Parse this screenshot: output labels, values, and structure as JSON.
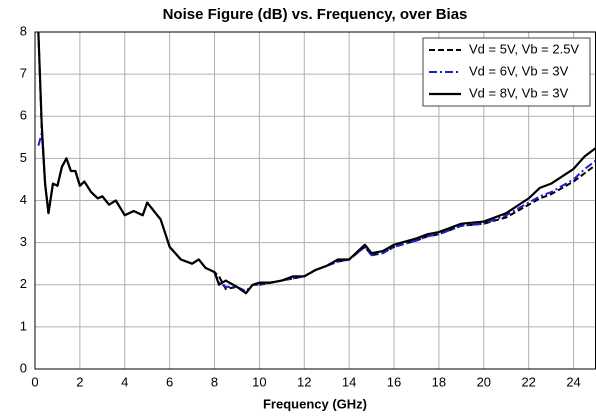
{
  "chart_data": {
    "type": "line",
    "title": "Noise Figure (dB) vs. Frequency, over Bias",
    "x_label": "Frequency (GHz)",
    "xlim": [
      0,
      25
    ],
    "ylim": [
      0,
      8
    ],
    "xticks": [
      0,
      2,
      4,
      6,
      8,
      10,
      12,
      14,
      16,
      18,
      20,
      22,
      24
    ],
    "yticks": [
      0,
      1,
      2,
      3,
      4,
      5,
      6,
      7,
      8
    ],
    "grid": true,
    "legend": "upper right",
    "x": [
      0.15,
      0.3,
      0.45,
      0.6,
      0.8,
      1.0,
      1.2,
      1.4,
      1.6,
      1.8,
      2.0,
      2.2,
      2.5,
      2.8,
      3.0,
      3.3,
      3.6,
      4.0,
      4.4,
      4.8,
      5.0,
      5.3,
      5.6,
      6.0,
      6.5,
      7.0,
      7.3,
      7.6,
      8.0,
      8.2,
      8.5,
      9.0,
      9.4,
      9.7,
      10.0,
      10.5,
      11.0,
      11.5,
      12.0,
      12.5,
      13.0,
      13.5,
      14.0,
      14.7,
      15.0,
      15.5,
      16.0,
      17.0,
      17.5,
      18.0,
      19.0,
      20.0,
      21.0,
      22.0,
      22.5,
      23.0,
      24.0,
      24.5,
      25.0
    ],
    "series": [
      {
        "name": "Vd = 5V, Vb = 2.5V",
        "color": "#000000",
        "dash": "dashed",
        "values": [
          8,
          5.7,
          4.4,
          3.7,
          4.4,
          4.35,
          4.8,
          5.0,
          4.7,
          4.7,
          4.35,
          4.45,
          4.2,
          4.05,
          4.1,
          3.9,
          4.0,
          3.65,
          3.75,
          3.65,
          3.95,
          3.75,
          3.55,
          2.9,
          2.6,
          2.5,
          2.6,
          2.4,
          2.3,
          2.2,
          1.9,
          1.95,
          1.8,
          2.0,
          2.0,
          2.05,
          2.1,
          2.15,
          2.2,
          2.35,
          2.45,
          2.55,
          2.6,
          2.9,
          2.7,
          2.75,
          2.9,
          3.05,
          3.15,
          3.2,
          3.4,
          3.45,
          3.6,
          3.9,
          4.05,
          4.15,
          4.45,
          4.65,
          4.85
        ]
      },
      {
        "name": "Vd = 6V, Vb = 3V",
        "color": "#1f1fd6",
        "dash": "dashdot",
        "values": [
          5.3,
          5.6,
          4.4,
          3.7,
          4.4,
          4.35,
          4.8,
          5.0,
          4.7,
          4.7,
          4.35,
          4.45,
          4.2,
          4.05,
          4.1,
          3.9,
          4.0,
          3.65,
          3.75,
          3.65,
          3.95,
          3.75,
          3.55,
          2.9,
          2.6,
          2.5,
          2.6,
          2.4,
          2.3,
          2.05,
          1.95,
          1.95,
          1.85,
          2.0,
          2.0,
          2.05,
          2.1,
          2.15,
          2.2,
          2.35,
          2.45,
          2.55,
          2.6,
          2.9,
          2.7,
          2.75,
          2.9,
          3.05,
          3.15,
          3.2,
          3.4,
          3.45,
          3.65,
          3.95,
          4.1,
          4.2,
          4.5,
          4.75,
          4.95
        ]
      },
      {
        "name": "Vd = 8V, Vb = 3V",
        "color": "#000000",
        "dash": "solid",
        "values": [
          8,
          5.8,
          4.4,
          3.7,
          4.4,
          4.35,
          4.8,
          5.0,
          4.7,
          4.7,
          4.35,
          4.45,
          4.2,
          4.05,
          4.1,
          3.9,
          4.0,
          3.65,
          3.75,
          3.65,
          3.95,
          3.75,
          3.55,
          2.9,
          2.6,
          2.5,
          2.6,
          2.4,
          2.3,
          2.0,
          2.1,
          1.95,
          1.8,
          2.0,
          2.05,
          2.05,
          2.1,
          2.2,
          2.2,
          2.35,
          2.45,
          2.6,
          2.6,
          2.95,
          2.75,
          2.8,
          2.95,
          3.1,
          3.2,
          3.25,
          3.45,
          3.5,
          3.7,
          4.05,
          4.3,
          4.4,
          4.75,
          5.05,
          5.25
        ]
      }
    ]
  }
}
